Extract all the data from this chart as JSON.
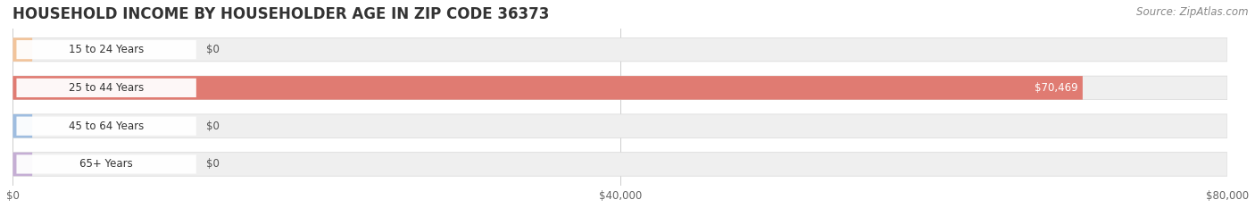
{
  "title": "HOUSEHOLD INCOME BY HOUSEHOLDER AGE IN ZIP CODE 36373",
  "source": "Source: ZipAtlas.com",
  "categories": [
    "15 to 24 Years",
    "25 to 44 Years",
    "45 to 64 Years",
    "65+ Years"
  ],
  "values": [
    0,
    70469,
    0,
    0
  ],
  "bar_colors": [
    "#f2c49b",
    "#e07b72",
    "#9fbde0",
    "#c5aed4"
  ],
  "xlim": [
    0,
    80000
  ],
  "xticks": [
    0,
    40000,
    80000
  ],
  "xtick_labels": [
    "$0",
    "$40,000",
    "$80,000"
  ],
  "background_color": "#ffffff",
  "bar_bg_color": "#efefef",
  "value_label_inside_color": "#ffffff",
  "value_label_outside_color": "#555555",
  "title_fontsize": 12,
  "source_fontsize": 8.5,
  "label_fontsize": 8.5,
  "tick_fontsize": 8.5
}
